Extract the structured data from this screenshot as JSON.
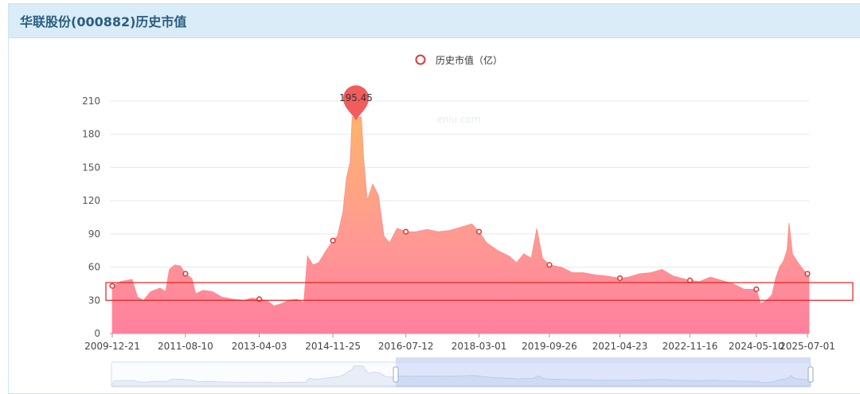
{
  "panel": {
    "title": "华联股份(000882)历史市值"
  },
  "watermark": "eniu.com",
  "colors": {
    "area_top": "#ffb36b",
    "area_bottom": "#ff7f9f",
    "line": "#ff8a8a",
    "marker": "#e03a3a",
    "pin": "#f25c5c",
    "header_bg": "#d9ecf7",
    "title": "#2b5d7f"
  },
  "chart_data": {
    "type": "area",
    "title": "",
    "legend": {
      "label": "历史市值（亿）",
      "position": "top-center"
    },
    "ylabel": "",
    "xlabel": "",
    "ylim": [
      0,
      210
    ],
    "yticks": [
      0,
      30,
      60,
      90,
      120,
      150,
      180,
      210
    ],
    "xticks": [
      "2009-12-21",
      "2011-08-10",
      "2013-04-03",
      "2014-11-25",
      "2016-07-12",
      "2018-03-01",
      "2019-09-26",
      "2021-04-23",
      "2022-11-16",
      "2024-05-10",
      "2025-07-01"
    ],
    "grid": true,
    "max_label": {
      "date": "2015-06",
      "value": 195.45,
      "text": "195.45"
    },
    "series": [
      {
        "name": "历史市值（亿）",
        "points": [
          [
            "2009-12-21",
            43
          ],
          [
            "2010-03-01",
            47
          ],
          [
            "2010-06-01",
            49
          ],
          [
            "2010-07-15",
            33
          ],
          [
            "2010-09-01",
            30
          ],
          [
            "2010-11-01",
            38
          ],
          [
            "2011-01-15",
            41
          ],
          [
            "2011-03-01",
            38
          ],
          [
            "2011-04-01",
            58
          ],
          [
            "2011-05-15",
            62
          ],
          [
            "2011-07-01",
            61
          ],
          [
            "2011-08-10",
            54
          ],
          [
            "2011-10-01",
            50
          ],
          [
            "2011-11-01",
            36
          ],
          [
            "2012-01-01",
            39
          ],
          [
            "2012-03-15",
            38
          ],
          [
            "2012-06-01",
            33
          ],
          [
            "2012-09-01",
            31
          ],
          [
            "2012-12-01",
            30
          ],
          [
            "2013-02-01",
            32
          ],
          [
            "2013-04-03",
            31
          ],
          [
            "2013-06-01",
            30
          ],
          [
            "2013-08-01",
            25
          ],
          [
            "2013-10-01",
            27
          ],
          [
            "2013-12-01",
            30
          ],
          [
            "2014-02-01",
            31
          ],
          [
            "2014-04-01",
            28
          ],
          [
            "2014-05-01",
            70
          ],
          [
            "2014-06-15",
            62
          ],
          [
            "2014-08-01",
            64
          ],
          [
            "2014-10-01",
            75
          ],
          [
            "2014-11-25",
            84
          ],
          [
            "2015-01-01",
            88
          ],
          [
            "2015-02-15",
            110
          ],
          [
            "2015-03-15",
            140
          ],
          [
            "2015-04-15",
            155
          ],
          [
            "2015-05-01",
            195.45
          ],
          [
            "2015-07-15",
            195.45
          ],
          [
            "2015-08-01",
            160
          ],
          [
            "2015-09-01",
            120
          ],
          [
            "2015-10-15",
            135
          ],
          [
            "2015-12-01",
            125
          ],
          [
            "2016-01-15",
            88
          ],
          [
            "2016-03-01",
            82
          ],
          [
            "2016-05-01",
            95
          ],
          [
            "2016-07-12",
            92
          ],
          [
            "2016-10-01",
            92
          ],
          [
            "2017-01-01",
            94
          ],
          [
            "2017-04-01",
            92
          ],
          [
            "2017-07-01",
            93
          ],
          [
            "2017-10-01",
            96
          ],
          [
            "2018-01-01",
            99
          ],
          [
            "2018-03-01",
            92
          ],
          [
            "2018-05-01",
            82
          ],
          [
            "2018-08-01",
            75
          ],
          [
            "2018-11-01",
            70
          ],
          [
            "2019-01-01",
            64
          ],
          [
            "2019-03-01",
            72
          ],
          [
            "2019-05-01",
            68
          ],
          [
            "2019-06-15",
            95
          ],
          [
            "2019-08-01",
            68
          ],
          [
            "2019-09-26",
            62
          ],
          [
            "2020-01-01",
            60
          ],
          [
            "2020-04-01",
            55
          ],
          [
            "2020-07-01",
            55
          ],
          [
            "2020-10-01",
            53
          ],
          [
            "2021-01-01",
            52
          ],
          [
            "2021-04-23",
            50
          ],
          [
            "2021-07-01",
            51
          ],
          [
            "2021-10-01",
            54
          ],
          [
            "2022-01-01",
            55
          ],
          [
            "2022-04-01",
            58
          ],
          [
            "2022-07-01",
            52
          ],
          [
            "2022-11-16",
            48
          ],
          [
            "2023-02-01",
            47
          ],
          [
            "2023-05-01",
            51
          ],
          [
            "2023-08-01",
            48
          ],
          [
            "2023-11-01",
            45
          ],
          [
            "2024-02-01",
            40
          ],
          [
            "2024-05-10",
            40
          ],
          [
            "2024-06-15",
            27
          ],
          [
            "2024-08-01",
            30
          ],
          [
            "2024-09-15",
            35
          ],
          [
            "2024-10-15",
            50
          ],
          [
            "2024-11-15",
            60
          ],
          [
            "2024-12-15",
            65
          ],
          [
            "2025-01-15",
            75
          ],
          [
            "2025-02-01",
            100
          ],
          [
            "2025-03-01",
            72
          ],
          [
            "2025-04-15",
            64
          ],
          [
            "2025-06-01",
            57
          ],
          [
            "2025-07-01",
            54
          ],
          [
            "2025-08-15",
            56
          ]
        ]
      }
    ],
    "markers": [
      [
        "2009-12-21",
        43
      ],
      [
        "2011-08-10",
        54
      ],
      [
        "2013-04-03",
        31
      ],
      [
        "2014-11-25",
        84
      ],
      [
        "2016-07-12",
        92
      ],
      [
        "2018-03-01",
        92
      ],
      [
        "2019-09-26",
        62
      ],
      [
        "2021-04-23",
        50
      ],
      [
        "2022-11-16",
        48
      ],
      [
        "2024-05-10",
        40
      ],
      [
        "2025-07-01",
        54
      ]
    ],
    "highlight_band": [
      30,
      46
    ]
  }
}
